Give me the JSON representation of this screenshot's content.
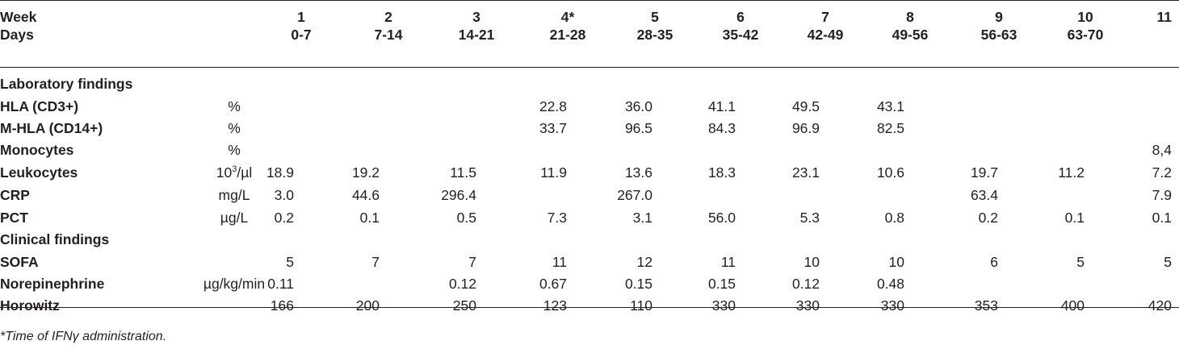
{
  "header": {
    "row1_label": "Week",
    "row2_label": "Days",
    "weeks": [
      "1",
      "2",
      "3",
      "4*",
      "5",
      "6",
      "7",
      "8",
      "9",
      "10",
      "11"
    ],
    "days": [
      "0-7",
      "7-14",
      "14-21",
      "21-28",
      "28-35",
      "35-42",
      "42-49",
      "49-56",
      "56-63",
      "63-70",
      ""
    ]
  },
  "sections": {
    "lab": "Laboratory findings",
    "clinical": "Clinical findings"
  },
  "rows": [
    {
      "label": "HLA (CD3+)",
      "unit": "%",
      "values": [
        "",
        "",
        "",
        "22.8",
        "36.0",
        "41.1",
        "49.5",
        "43.1",
        "",
        "",
        ""
      ]
    },
    {
      "label": "M-HLA (CD14+)",
      "unit": "%",
      "values": [
        "",
        "",
        "",
        "33.7",
        "96.5",
        "84.3",
        "96.9",
        "82.5",
        "",
        "",
        ""
      ]
    },
    {
      "label": "Monocytes",
      "unit": "%",
      "values": [
        "",
        "",
        "",
        "",
        "",
        "",
        "",
        "",
        "",
        "",
        "8,4"
      ]
    },
    {
      "label": "Leukocytes",
      "unit_base": "10",
      "unit_sup": "3",
      "unit_rest": "/µl",
      "values": [
        "18.9",
        "19.2",
        "11.5",
        "11.9",
        "13.6",
        "18.3",
        "23.1",
        "10.6",
        "19.7",
        "11.2",
        "7.2"
      ]
    },
    {
      "label": "CRP",
      "unit": "mg/L",
      "values": [
        "3.0",
        "44.6",
        "296.4",
        "",
        "267.0",
        "",
        "",
        "",
        "63.4",
        "",
        "7.9"
      ]
    },
    {
      "label": "PCT",
      "unit": "µg/L",
      "values": [
        "0.2",
        "0.1",
        "0.5",
        "7.3",
        "3.1",
        "56.0",
        "5.3",
        "0.8",
        "0.2",
        "0.1",
        "0.1"
      ]
    },
    {
      "label": "SOFA",
      "unit": "",
      "values": [
        "5",
        "7",
        "7",
        "11",
        "12",
        "11",
        "10",
        "10",
        "6",
        "5",
        "5"
      ]
    },
    {
      "label": "Norepinephrine",
      "unit": "µg/kg/min",
      "values": [
        "0.11",
        "",
        "0.12",
        "0.67",
        "0.15",
        "0.15",
        "0.12",
        "0.48",
        "",
        "",
        ""
      ]
    },
    {
      "label": "Horowitz",
      "unit": "",
      "values": [
        "166",
        "200",
        "250",
        "123",
        "110",
        "330",
        "330",
        "330",
        "353",
        "400",
        "420"
      ]
    }
  ],
  "footnote": "*Time of IFNγ administration."
}
